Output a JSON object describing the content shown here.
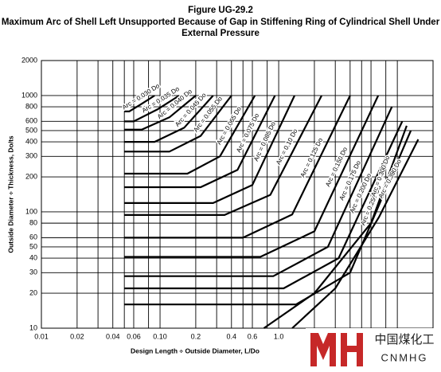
{
  "chart_data": {
    "type": "line",
    "title": "Figure UG-29.2",
    "subtitle": "Maximum Arc of Shell Left Unsupported Because of Gap in Stiffening Ring of Cylindrical Shell Under",
    "subtitle2": "External Pressure",
    "x_label": "Design Length ÷ Outside Diameter, L/Do",
    "y_label": "Outside Diameter ÷ Thickness, Do/ts",
    "log_x": true,
    "log_y": true,
    "grid": true,
    "color": "#000000",
    "xlim": [
      0.01,
      20
    ],
    "ylim": [
      10,
      2000
    ],
    "xticks": [
      0.01,
      0.02,
      0.04,
      0.06,
      {
        "value": 0.1,
        "label": "0.10"
      },
      0.2,
      0.4,
      0.6,
      {
        "value": 1,
        "label": "1.0"
      }
    ],
    "xgrid": [
      0.03,
      0.05,
      0.08,
      0.3,
      0.5,
      0.8,
      2,
      3,
      4,
      5,
      6,
      8,
      10
    ],
    "yticks": [
      10,
      20,
      30,
      40,
      50,
      60,
      80,
      100,
      200,
      300,
      400,
      500,
      600,
      800,
      1000,
      2000
    ],
    "series": [
      {
        "name": "Arc = 0.030 Do",
        "x": [
          0.05,
          0.055,
          0.07,
          0.09
        ],
        "values": [
          730,
          730,
          850,
          1000
        ]
      },
      {
        "name": "Arc = 0.035 Do",
        "x": [
          0.05,
          0.06,
          0.095,
          0.145
        ],
        "values": [
          600,
          600,
          760,
          1000
        ]
      },
      {
        "name": "Arc = 0.040 Do",
        "x": [
          0.05,
          0.07,
          0.12,
          0.2
        ],
        "values": [
          510,
          510,
          650,
          1000
        ]
      },
      {
        "name": "Arc = 0.045 Do",
        "x": [
          0.05,
          0.09,
          0.16,
          0.28
        ],
        "values": [
          400,
          400,
          530,
          1000
        ]
      },
      {
        "name": "Arc = 0.055 Do",
        "x": [
          0.05,
          0.12,
          0.22,
          0.4
        ],
        "values": [
          330,
          330,
          450,
          1000
        ]
      },
      {
        "name": "Arc = 0.065 Do",
        "x": [
          0.05,
          0.17,
          0.32,
          0.63
        ],
        "values": [
          213,
          213,
          300,
          1000
        ]
      },
      {
        "name": "Arc = 0.075 Do",
        "x": [
          0.05,
          0.22,
          0.45,
          0.93
        ],
        "values": [
          163,
          163,
          230,
          1000
        ]
      },
      {
        "name": "Arc = 0.085 Do",
        "x": [
          0.05,
          0.28,
          0.6,
          1.36
        ],
        "values": [
          119,
          119,
          170,
          1000
        ]
      },
      {
        "name": "Arc = 0.10 Do",
        "x": [
          0.05,
          0.35,
          0.85,
          2.3
        ],
        "values": [
          94,
          94,
          140,
          1000
        ]
      },
      {
        "name": "Arc = 0.125 Do",
        "x": [
          0.05,
          0.5,
          1.3,
          4
        ],
        "values": [
          60,
          60,
          95,
          1000
        ]
      },
      {
        "name": "Arc = 0.150 Do",
        "x": [
          0.05,
          0.7,
          2,
          6.9
        ],
        "values": [
          41,
          41,
          68,
          1000
        ]
      },
      {
        "name": "Arc = 0.175 Do",
        "x": [
          0.05,
          0.9,
          2.6,
          9
        ],
        "values": [
          28,
          28,
          50,
          800
        ]
      },
      {
        "name": "Arc = 0.200 Do",
        "x": [
          0.05,
          1.1,
          3.2,
          11
        ],
        "values": [
          22,
          22,
          40,
          600
        ]
      },
      {
        "name": "Arc = 0.250 Do",
        "x": [
          0.05,
          1.4,
          4,
          13
        ],
        "values": [
          16,
          16,
          30,
          500
        ]
      },
      {
        "name": "Arc = 0.300 Do",
        "x": [
          0.75,
          2,
          6,
          12
        ],
        "values": [
          10,
          20,
          80,
          550
        ]
      },
      {
        "name": "Arc = 0.390 Do",
        "x": [
          1.3,
          3,
          7,
          15
        ],
        "values": [
          10,
          22,
          90,
          420
        ]
      }
    ],
    "watermark": "中国煤化工",
    "watermark_sub": "CNMHG"
  }
}
